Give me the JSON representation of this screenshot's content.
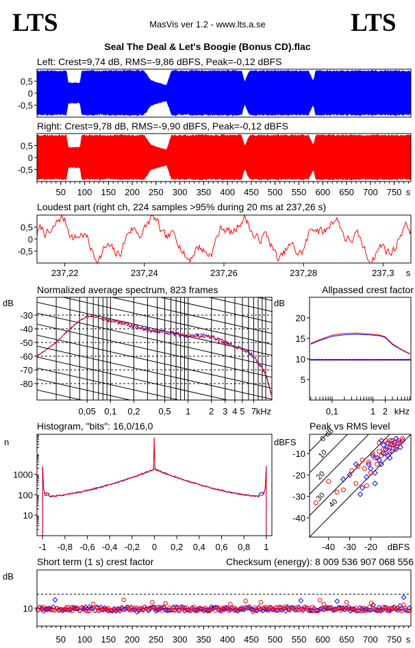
{
  "header": {
    "logo_left": "LTS",
    "logo_right": "LTS",
    "app_title": "MasVis ver 1.2 - www.lts.a.se",
    "file_name": "Seal The Deal & Let's Boogie (Bonus CD).flac"
  },
  "colors": {
    "left": "#0000ff",
    "right": "#ff0000",
    "grid": "#000000"
  },
  "chart_data": [
    {
      "id": "left_waveform",
      "type": "area",
      "title": "Left: Crest=9,74 dB, RMS=-9,86 dBFS, Peak=-0,12 dBFS",
      "y_ticks": [
        "0,5",
        "0",
        "-0,5"
      ],
      "ylim": [
        -1,
        1
      ],
      "xlim": [
        0,
        785
      ],
      "envelope": [
        [
          0,
          0.97
        ],
        [
          62,
          0.97
        ],
        [
          66,
          0.45
        ],
        [
          90,
          0.45
        ],
        [
          94,
          0.97
        ],
        [
          225,
          0.97
        ],
        [
          240,
          0.55
        ],
        [
          262,
          0.4
        ],
        [
          272,
          0.35
        ],
        [
          282,
          0.97
        ],
        [
          430,
          0.97
        ],
        [
          436,
          0.5
        ],
        [
          446,
          0.97
        ],
        [
          570,
          0.97
        ],
        [
          580,
          0.55
        ],
        [
          585,
          0.97
        ],
        [
          785,
          0.97
        ]
      ]
    },
    {
      "id": "right_waveform",
      "type": "area",
      "title": "Right: Crest=9,78 dB, RMS=-9,90 dBFS, Peak=-0,12 dBFS",
      "y_ticks": [
        "0,5",
        "0",
        "-0,5"
      ],
      "ylim": [
        -1,
        1
      ],
      "xlim": [
        0,
        785
      ],
      "x_ticks": [
        "50",
        "100",
        "150",
        "200",
        "250",
        "300",
        "350",
        "400",
        "450",
        "500",
        "550",
        "600",
        "650",
        "700",
        "750"
      ],
      "x_unit": "s",
      "envelope": [
        [
          0,
          0.97
        ],
        [
          62,
          0.97
        ],
        [
          66,
          0.45
        ],
        [
          90,
          0.45
        ],
        [
          94,
          0.97
        ],
        [
          225,
          0.97
        ],
        [
          240,
          0.55
        ],
        [
          262,
          0.4
        ],
        [
          272,
          0.35
        ],
        [
          282,
          0.97
        ],
        [
          430,
          0.97
        ],
        [
          436,
          0.5
        ],
        [
          446,
          0.97
        ],
        [
          570,
          0.97
        ],
        [
          580,
          0.55
        ],
        [
          585,
          0.97
        ],
        [
          785,
          0.97
        ]
      ]
    },
    {
      "id": "loudest_part",
      "type": "line",
      "title": "Loudest part (right ch, 224 samples >95% during 20 ms at 237,26 s)",
      "y_ticks": [
        "0,5",
        "0",
        "-0,5"
      ],
      "ylim": [
        -1,
        1
      ],
      "xlim": [
        237.213,
        237.307
      ],
      "x_ticks": [
        "237,22",
        "237,24",
        "237,26",
        "237,28",
        "237,3"
      ],
      "x_unit": "s"
    },
    {
      "id": "spectrum",
      "type": "line",
      "title": "Normalized average spectrum, 823 frames",
      "ylabel": "dB",
      "y_ticks": [
        "-30",
        "-40",
        "-50",
        "-60",
        "-70",
        "-80"
      ],
      "ylim": [
        -92,
        -17
      ],
      "x_ticks": [
        "0,05",
        "0,1",
        "0,2",
        "0,5",
        "1",
        "2",
        "3",
        "4",
        "5",
        "7"
      ],
      "x_unit": "kHz",
      "x_khz": [
        0.012,
        0.02,
        0.03,
        0.04,
        0.05,
        0.06,
        0.08,
        0.1,
        0.15,
        0.2,
        0.3,
        0.5,
        0.7,
        1,
        1.5,
        2,
        3,
        4,
        5,
        6,
        7,
        8,
        10,
        12
      ],
      "db": [
        -59,
        -50,
        -40,
        -34,
        -31,
        -31,
        -33,
        -34,
        -36,
        -38,
        -41,
        -42,
        -44,
        -45,
        -45,
        -46,
        -50,
        -53,
        -55,
        -57,
        -60,
        -65,
        -73,
        -90
      ]
    },
    {
      "id": "allpassed_crest",
      "type": "line",
      "title": "Allpassed crest factor",
      "ylabel": "dB",
      "y_ticks": [
        "20",
        "15",
        "10",
        "5"
      ],
      "ylim": [
        0,
        25
      ],
      "x_ticks": [
        "0,1",
        "1",
        "2"
      ],
      "x_unit": "kHz",
      "x_khz": [
        0.03,
        0.05,
        0.1,
        0.2,
        0.4,
        0.7,
        1,
        1.5,
        2,
        3,
        5,
        8
      ],
      "left": [
        13.6,
        14.5,
        15.5,
        15.9,
        16.0,
        15.9,
        15.8,
        15.6,
        15.2,
        13.5,
        12.2,
        11.2
      ],
      "right": [
        13.8,
        14.7,
        15.8,
        16.2,
        16.3,
        16.1,
        16.0,
        15.8,
        15.4,
        13.7,
        12.3,
        11.3
      ],
      "reference": 9.8
    },
    {
      "id": "histogram",
      "type": "line",
      "title": "Histogram, \"bits\": 16,0/16,0",
      "ylabel": "n",
      "y_ticks": [
        "1000",
        "100",
        "10"
      ],
      "ylim": [
        1,
        90000
      ],
      "x_ticks": [
        "-1",
        "-0,8",
        "-0,6",
        "-0,4",
        "-0,2",
        "0",
        "0,2",
        "0,4",
        "0,6",
        "0,8",
        "1"
      ],
      "xlim": [
        -1.05,
        1.05
      ]
    },
    {
      "id": "peak_vs_rms",
      "type": "scatter",
      "title": "Peak vs RMS level",
      "ylabel": "dBFS",
      "xlabel": "dBFS",
      "y_ticks": [
        "-10",
        "-20",
        "-30",
        "-40"
      ],
      "ylim": [
        -49,
        -1
      ],
      "x_ticks": [
        "-40",
        "-30",
        "-20"
      ],
      "xlim": [
        -49,
        -1
      ],
      "diagonal_labels": [
        "40",
        "30",
        "20",
        "10",
        "0 dB"
      ],
      "left_points": [
        [
          -33,
          -22
        ],
        [
          -30,
          -20
        ],
        [
          -27,
          -15
        ],
        [
          -25,
          -29
        ],
        [
          -24,
          -26
        ],
        [
          -22,
          -21
        ],
        [
          -20,
          -17
        ],
        [
          -19,
          -11
        ],
        [
          -18,
          -19
        ],
        [
          -17,
          -12
        ],
        [
          -16,
          -13
        ],
        [
          -15,
          -15
        ],
        [
          -14,
          -10
        ],
        [
          -13,
          -8
        ],
        [
          -12,
          -11
        ],
        [
          -11,
          -7
        ],
        [
          -10,
          -9
        ],
        [
          -9,
          -6
        ],
        [
          -8,
          -8
        ],
        [
          -7,
          -5
        ],
        [
          -6,
          -7
        ],
        [
          -5,
          -4
        ],
        [
          -14,
          -6
        ],
        [
          -12,
          -5
        ],
        [
          -15,
          -4
        ],
        [
          -10,
          -4
        ],
        [
          -8,
          -3
        ],
        [
          -21,
          -15
        ],
        [
          -18,
          -24
        ],
        [
          -11,
          -12
        ]
      ],
      "right_points": [
        [
          -46,
          -33
        ],
        [
          -40,
          -23
        ],
        [
          -36,
          -28
        ],
        [
          -33,
          -27
        ],
        [
          -29,
          -18
        ],
        [
          -27,
          -24
        ],
        [
          -26,
          -16
        ],
        [
          -24,
          -13
        ],
        [
          -22,
          -25
        ],
        [
          -21,
          -14
        ],
        [
          -20,
          -19
        ],
        [
          -18,
          -12
        ],
        [
          -17,
          -15
        ],
        [
          -16,
          -9
        ],
        [
          -15,
          -11
        ],
        [
          -14,
          -8
        ],
        [
          -13,
          -10
        ],
        [
          -12,
          -7
        ],
        [
          -11,
          -9
        ],
        [
          -10,
          -6
        ],
        [
          -9,
          -5
        ],
        [
          -8,
          -7
        ],
        [
          -7,
          -4
        ],
        [
          -6,
          -5
        ],
        [
          -5,
          -3
        ],
        [
          -16,
          -5
        ],
        [
          -13,
          -4
        ],
        [
          -23,
          -17
        ],
        [
          -19,
          -10
        ],
        [
          -11,
          -4
        ]
      ]
    },
    {
      "id": "short_term_crest",
      "type": "scatter",
      "title": "Short term (1 s) crest factor",
      "annotation": "Checksum (energy):  8 009 536 907 068 556",
      "ylabel": "dB",
      "y_ticks": [
        "10"
      ],
      "ylim": [
        3,
        25
      ],
      "xlim": [
        0,
        785
      ],
      "reference": 15.5,
      "x_ticks": [
        "50",
        "100",
        "150",
        "200",
        "250",
        "300",
        "350",
        "400",
        "450",
        "500",
        "550",
        "600",
        "650",
        "700",
        "750"
      ],
      "x_unit": "s"
    }
  ]
}
